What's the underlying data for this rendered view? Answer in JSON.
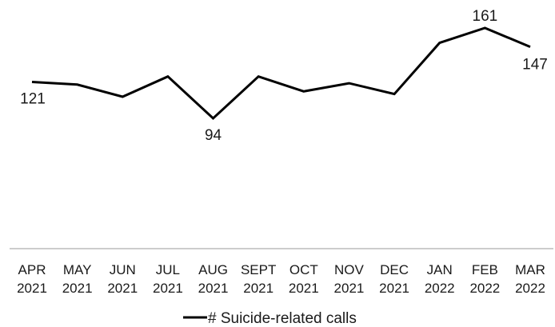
{
  "chart_data": {
    "type": "line",
    "categories": [
      [
        "APR",
        "2021"
      ],
      [
        "MAY",
        "2021"
      ],
      [
        "JUN",
        "2021"
      ],
      [
        "JUL",
        "2021"
      ],
      [
        "AUG",
        "2021"
      ],
      [
        "SEPT",
        "2021"
      ],
      [
        "OCT",
        "2021"
      ],
      [
        "NOV",
        "2021"
      ],
      [
        "DEC",
        "2021"
      ],
      [
        "JAN",
        "2022"
      ],
      [
        "FEB",
        "2022"
      ],
      [
        "MAR",
        "2022"
      ]
    ],
    "series": [
      {
        "name": "# Suicide-related calls",
        "values": [
          121,
          119,
          110,
          125,
          94,
          125,
          114,
          120,
          112,
          150,
          161,
          147
        ],
        "color": "#000000"
      }
    ],
    "data_labels": [
      {
        "index": 0,
        "text": "121",
        "placement": "below"
      },
      {
        "index": 4,
        "text": "94",
        "placement": "below"
      },
      {
        "index": 10,
        "text": "161",
        "placement": "above"
      },
      {
        "index": 11,
        "text": "147",
        "placement": "below"
      }
    ],
    "ylim": [
      0,
      175
    ],
    "grid": false,
    "legend": "bottom-center",
    "title": "",
    "xlabel": "",
    "ylabel": ""
  }
}
